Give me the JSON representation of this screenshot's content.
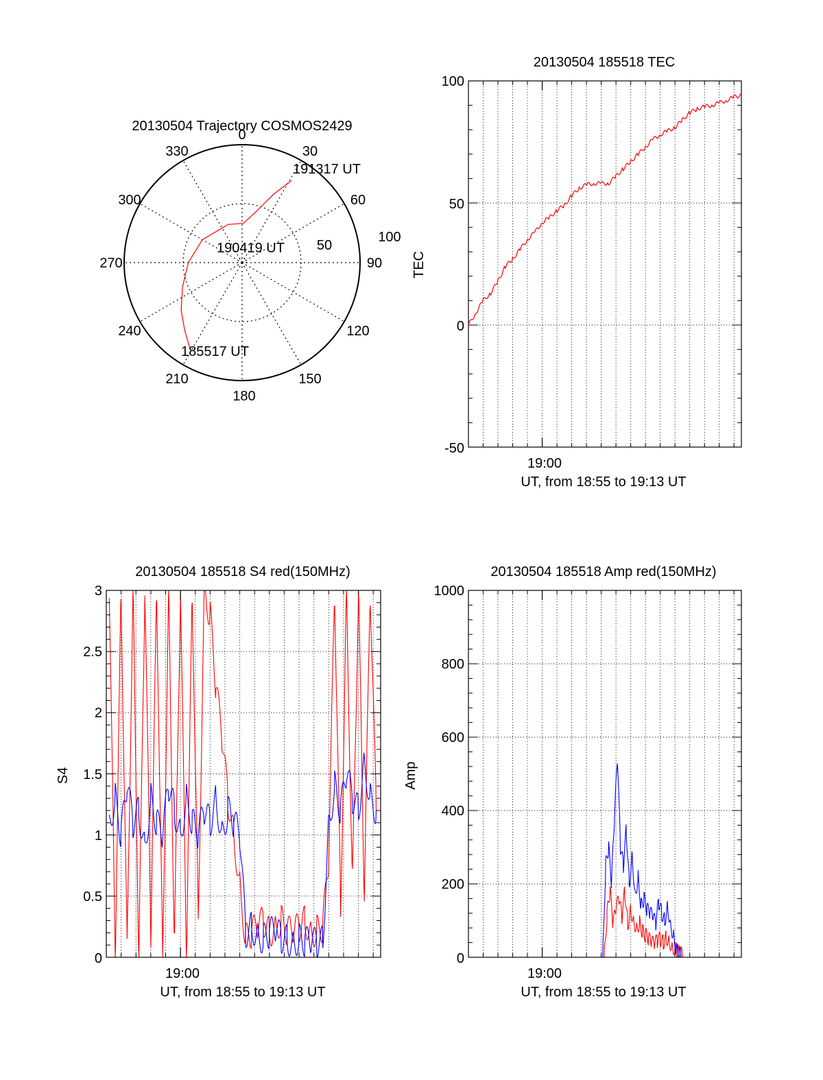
{
  "chart_data": [
    {
      "type": "polar",
      "title": "20130504 Trajectory COSMOS2429",
      "angle_ticks": [
        "0",
        "30",
        "60",
        "90",
        "120",
        "150",
        "180",
        "210",
        "240",
        "270",
        "300",
        "330"
      ],
      "radial_ticks": [
        "50",
        "100"
      ],
      "annotations": {
        "start": "185517 UT",
        "mid": "190419 UT",
        "end": "191317 UT"
      },
      "trajectory": {
        "color": "#ff0000",
        "points": [
          {
            "azimuth": 211,
            "elevation": 13
          },
          {
            "azimuth": 220,
            "elevation": 22
          },
          {
            "azimuth": 232,
            "elevation": 31
          },
          {
            "azimuth": 248,
            "elevation": 41
          },
          {
            "azimuth": 270,
            "elevation": 49
          },
          {
            "azimuth": 300,
            "elevation": 55
          },
          {
            "azimuth": 340,
            "elevation": 59
          },
          {
            "azimuth": 2,
            "elevation": 60
          },
          {
            "azimuth": 15,
            "elevation": 50
          },
          {
            "azimuth": 25,
            "elevation": 32
          },
          {
            "azimuth": 31,
            "elevation": 17
          }
        ]
      }
    },
    {
      "type": "line",
      "title": "20130504 185518 TEC",
      "xlabel": "UT, from 18:55 to 19:13 UT",
      "ylabel": "TEC",
      "x_tick_label": "19:00",
      "xlim_minutes": [
        0,
        18.5
      ],
      "ylim": [
        -50,
        100
      ],
      "y_ticks": [
        "-50",
        "0",
        "50",
        "100"
      ],
      "series": [
        {
          "name": "TEC",
          "color": "#ff0000",
          "x": [
            0,
            0.5,
            1,
            1.5,
            2,
            2.5,
            3,
            3.5,
            4,
            4.5,
            5,
            5.5,
            6,
            6.5,
            7,
            7.5,
            8,
            8.5,
            9,
            9.5,
            10,
            10.5,
            11,
            11.5,
            12,
            12.5,
            13,
            13.5,
            14,
            14.5,
            15,
            15.5,
            16,
            16.5,
            17,
            17.5,
            18,
            18.5
          ],
          "values": [
            0,
            5,
            10,
            13,
            18,
            24,
            27,
            31,
            35,
            38,
            42,
            44,
            47,
            49,
            53,
            56,
            57.5,
            58,
            58,
            58,
            61,
            64,
            67,
            70,
            73,
            76,
            78,
            79.5,
            81,
            84,
            87,
            88.5,
            89.5,
            90,
            91,
            92,
            93.5,
            94
          ]
        }
      ]
    },
    {
      "type": "line",
      "title": "20130504 185518 S4 red(150MHz)",
      "xlabel": "UT, from 18:55 to 19:13 UT",
      "ylabel": "S4",
      "x_tick_label": "19:00",
      "xlim_minutes": [
        0,
        18.5
      ],
      "ylim": [
        0,
        3
      ],
      "y_ticks": [
        "0",
        "0.5",
        "1",
        "1.5",
        "2",
        "2.5",
        "3"
      ],
      "series": [
        {
          "name": "S4 red",
          "color": "#ff0000",
          "x": [
            0.2,
            0.6,
            1,
            1.4,
            1.8,
            2.2,
            2.6,
            3,
            3.4,
            3.8,
            4.2,
            4.6,
            5,
            5.4,
            5.8,
            6.2,
            6.6,
            7,
            7.4,
            7.8,
            8.2,
            8.6,
            9,
            9.4,
            9.8,
            10.2,
            10.6,
            11,
            11.4,
            11.8,
            12.2,
            12.6,
            13,
            13.4,
            13.8,
            14.2,
            14.6,
            15,
            15.4,
            15.8,
            16.2,
            16.6,
            17,
            17.4,
            17.8,
            18.2
          ],
          "values": [
            3,
            0,
            3,
            0.1,
            3,
            0,
            3,
            0.2,
            3,
            0,
            3,
            0.1,
            3,
            0,
            3,
            0.3,
            3,
            2.8,
            2.2,
            1.8,
            1.3,
            1.0,
            0.6,
            0.15,
            0.2,
            0.25,
            0.3,
            0.2,
            0.25,
            0.3,
            0.22,
            0.2,
            0.25,
            0.3,
            0.2,
            0.22,
            0.25,
            0.8,
            3,
            0.4,
            3,
            0.6,
            3,
            0.5,
            3,
            1.2
          ]
        },
        {
          "name": "S4 blue",
          "color": "#0000ff",
          "x": [
            0.2,
            0.6,
            1,
            1.4,
            1.8,
            2.2,
            2.6,
            3,
            3.4,
            3.8,
            4.2,
            4.6,
            5,
            5.4,
            5.8,
            6.2,
            6.6,
            7,
            7.4,
            7.8,
            8.2,
            8.6,
            9,
            9.4,
            9.8,
            10.2,
            10.6,
            11,
            11.4,
            11.8,
            12.2,
            12.6,
            13,
            13.4,
            13.8,
            14.2,
            14.6,
            15,
            15.4,
            15.8,
            16.2,
            16.6,
            17,
            17.4,
            17.8,
            18.2
          ],
          "values": [
            1.1,
            1.3,
            1.0,
            1.4,
            1.1,
            1.2,
            0.9,
            1.3,
            1.1,
            1.0,
            1.4,
            1.2,
            1.0,
            1.3,
            1.1,
            1.0,
            1.2,
            1.1,
            1.3,
            1.0,
            1.2,
            1.1,
            1.0,
            0.2,
            0.25,
            0.18,
            0.15,
            0.2,
            0.22,
            0.16,
            0.14,
            0.12,
            0.15,
            0.13,
            0.12,
            0.12,
            0.13,
            1.1,
            1.4,
            1.2,
            1.5,
            1.3,
            1.2,
            1.6,
            1.3,
            1.2
          ]
        }
      ]
    },
    {
      "type": "line",
      "title": "20130504 185518 Amp red(150MHz)",
      "xlabel": "UT, from 18:55 to 19:13 UT",
      "ylabel": "Amp",
      "x_tick_label": "19:00",
      "xlim_minutes": [
        0,
        18.5
      ],
      "ylim": [
        0,
        1000
      ],
      "y_ticks": [
        "0",
        "200",
        "400",
        "600",
        "800",
        "1000"
      ],
      "series": [
        {
          "name": "Amp red",
          "color": "#ff0000",
          "x": [
            0,
            9.2,
            9.4,
            9.6,
            9.8,
            10.0,
            10.2,
            10.4,
            10.6,
            10.8,
            11.0,
            11.2,
            11.4,
            11.6,
            11.8,
            12.0,
            12.2,
            12.4,
            12.6,
            12.8,
            13.0,
            13.2,
            13.4,
            13.6,
            13.8,
            14.0,
            14.2,
            14.4,
            14.6,
            18.5
          ],
          "values": [
            0,
            0,
            120,
            180,
            90,
            130,
            160,
            110,
            180,
            90,
            130,
            100,
            80,
            95,
            70,
            60,
            50,
            40,
            35,
            45,
            50,
            40,
            55,
            45,
            30,
            25,
            15,
            10,
            0,
            0
          ]
        },
        {
          "name": "Amp blue",
          "color": "#0000ff",
          "x": [
            0,
            9.1,
            9.3,
            9.5,
            9.7,
            9.9,
            10.1,
            10.3,
            10.5,
            10.7,
            10.9,
            11.1,
            11.3,
            11.5,
            11.7,
            11.9,
            12.1,
            12.3,
            12.5,
            12.7,
            12.9,
            13.1,
            13.3,
            13.5,
            13.7,
            13.9,
            14.1,
            14.3,
            14.5,
            18.5
          ],
          "values": [
            0,
            0,
            250,
            300,
            200,
            380,
            540,
            300,
            250,
            350,
            200,
            280,
            170,
            220,
            140,
            160,
            130,
            120,
            110,
            90,
            150,
            120,
            100,
            140,
            90,
            60,
            20,
            10,
            0,
            0
          ]
        }
      ]
    }
  ]
}
